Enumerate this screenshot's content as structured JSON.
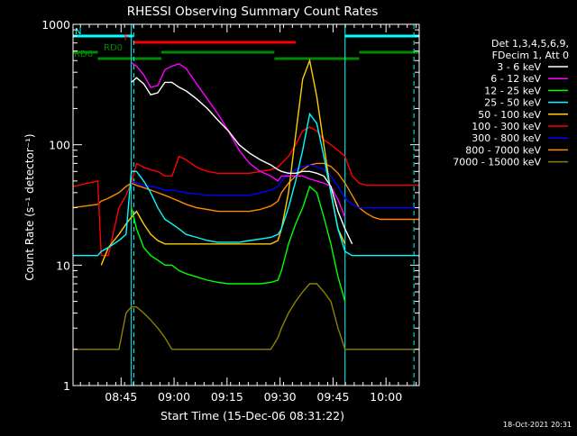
{
  "chart_data": {
    "type": "line",
    "title": "RHESSI Observing Summary Count Rates",
    "xlabel": "Start Time (15-Dec-06 08:31:22)",
    "ylabel": "Count Rate (s⁻¹ detector⁻¹)",
    "y_scale": "log",
    "ylim": [
      1,
      1000
    ],
    "xlim_minutes_after_0831": [
      0,
      98
    ],
    "y_ticks": [
      "1",
      "10",
      "100",
      "1000"
    ],
    "x_ticks": [
      {
        "label": "08:45",
        "minute": 13.6
      },
      {
        "label": "09:00",
        "minute": 28.6
      },
      {
        "label": "09:15",
        "minute": 43.6
      },
      {
        "label": "09:30",
        "minute": 58.6
      },
      {
        "label": "09:45",
        "minute": 73.6
      },
      {
        "label": "10:00",
        "minute": 88.6
      }
    ],
    "legend_header": [
      "Det 1,3,4,5,6,9,",
      "FDecim 1, Att 0"
    ],
    "timestamp": "18-Oct-2021 20:31",
    "flags": [
      {
        "label": "N",
        "color": "#00ffff",
        "segments": [
          [
            0,
            17
          ],
          [
            77,
            98
          ]
        ],
        "level": 1
      },
      {
        "label": "F",
        "color": "#ff0000",
        "segments": [
          [
            17,
            63
          ]
        ],
        "level": 2
      },
      {
        "label": "RD0",
        "color": "#008800",
        "segments": [
          [
            0,
            7
          ],
          [
            25,
            57
          ],
          [
            81,
            98
          ]
        ],
        "level": 3
      },
      {
        "label": "RD6",
        "color": "#008800",
        "segments": [
          [
            7,
            25
          ],
          [
            57,
            81
          ]
        ],
        "level": 4
      }
    ],
    "vertical_markers": [
      {
        "minute": 16.5,
        "style": "solid",
        "color": "#00ffff"
      },
      {
        "minute": 17.2,
        "style": "dashed",
        "color": "#00ffff"
      },
      {
        "minute": 77.0,
        "style": "solid",
        "color": "#00ffff"
      },
      {
        "minute": 96.5,
        "style": "dashed",
        "color": "#00ffff"
      }
    ],
    "x": [
      0,
      7,
      8,
      10,
      13,
      15,
      16.5,
      18,
      20,
      22,
      24,
      26,
      28,
      30,
      32,
      35,
      38,
      41,
      44,
      47,
      50,
      53,
      56,
      58,
      59,
      61,
      63,
      65,
      67,
      69,
      71,
      73,
      75,
      77,
      79,
      81,
      83,
      85,
      87,
      89,
      91,
      93,
      95,
      98
    ],
    "series": [
      {
        "name": "3 - 6 keV",
        "color": "#ffffff",
        "values": [
          null,
          null,
          null,
          null,
          null,
          null,
          330,
          360,
          320,
          260,
          270,
          330,
          330,
          300,
          280,
          240,
          200,
          160,
          130,
          100,
          85,
          75,
          68,
          62,
          60,
          58,
          58,
          60,
          60,
          58,
          55,
          45,
          28,
          20,
          15,
          null,
          null,
          null,
          null,
          null,
          null,
          null,
          null,
          null
        ]
      },
      {
        "name": "6 - 12 keV",
        "color": "#ff00ff",
        "values": [
          null,
          null,
          null,
          null,
          null,
          null,
          480,
          450,
          380,
          300,
          310,
          420,
          450,
          470,
          430,
          320,
          240,
          180,
          130,
          90,
          70,
          60,
          55,
          50,
          55,
          55,
          55,
          55,
          52,
          50,
          48,
          45,
          35,
          25,
          null,
          null,
          null,
          null,
          null,
          null,
          null,
          null,
          null,
          null
        ]
      },
      {
        "name": "12 - 25 keV",
        "color": "#00ff00",
        "values": [
          null,
          null,
          null,
          null,
          null,
          null,
          30,
          20,
          14,
          12,
          11,
          10,
          10,
          9,
          8.5,
          8,
          7.5,
          7.2,
          7,
          7,
          7,
          7,
          7.2,
          7.5,
          9,
          15,
          22,
          30,
          45,
          40,
          25,
          15,
          8,
          5,
          null,
          null,
          null,
          null,
          null,
          null,
          null,
          null,
          null,
          null
        ]
      },
      {
        "name": "25 - 50 keV",
        "color": "#00ffff",
        "values": [
          12,
          12,
          13,
          14,
          16,
          18,
          60,
          60,
          50,
          40,
          30,
          24,
          22,
          20,
          18,
          17,
          16,
          15.5,
          15.5,
          15.5,
          16,
          16.5,
          17,
          18,
          20,
          30,
          50,
          90,
          180,
          150,
          80,
          40,
          20,
          13,
          12,
          12,
          12,
          12,
          12,
          12,
          12,
          12,
          12,
          12
        ]
      },
      {
        "name": "50 - 100 keV",
        "color": "#ffcc00",
        "values": [
          null,
          null,
          10,
          14,
          18,
          22,
          25,
          28,
          22,
          18,
          16,
          15,
          15,
          15,
          15,
          15,
          15,
          15,
          15,
          15,
          15,
          15,
          15,
          16,
          20,
          40,
          120,
          350,
          500,
          250,
          100,
          40,
          20,
          15,
          null,
          null,
          null,
          null,
          null,
          null,
          null,
          null,
          null,
          null
        ]
      },
      {
        "name": "100 - 300 keV",
        "color": "#ff0000",
        "values": [
          45,
          50,
          12,
          12,
          30,
          38,
          48,
          70,
          65,
          62,
          60,
          55,
          55,
          80,
          75,
          65,
          60,
          58,
          58,
          58,
          58,
          60,
          62,
          65,
          70,
          80,
          100,
          130,
          140,
          130,
          110,
          100,
          90,
          80,
          55,
          48,
          46,
          46,
          46,
          46,
          46,
          46,
          46,
          46
        ]
      },
      {
        "name": "300 - 800 keV",
        "color": "#0000ff",
        "values": [
          null,
          null,
          null,
          null,
          null,
          null,
          50,
          48,
          46,
          45,
          44,
          42,
          42,
          41,
          40,
          39,
          38,
          38,
          38,
          38,
          38,
          40,
          42,
          45,
          50,
          58,
          62,
          66,
          68,
          66,
          62,
          55,
          45,
          36,
          32,
          30,
          30,
          30,
          30,
          30,
          30,
          30,
          30,
          30
        ]
      },
      {
        "name": "800 - 7000 keV",
        "color": "#ff8800",
        "values": [
          30,
          32,
          34,
          36,
          40,
          45,
          48,
          46,
          44,
          42,
          40,
          38,
          36,
          34,
          32,
          30,
          29,
          28,
          28,
          28,
          28,
          29,
          31,
          34,
          40,
          48,
          55,
          62,
          68,
          70,
          70,
          66,
          58,
          48,
          38,
          30,
          27,
          25,
          24,
          24,
          24,
          24,
          24,
          24
        ]
      },
      {
        "name": "7000 - 15000 keV",
        "color": "#8c8200",
        "values": [
          2,
          2,
          2,
          2,
          2,
          4,
          4.5,
          4.5,
          4,
          3.5,
          3,
          2.5,
          2,
          2,
          2,
          2,
          2,
          2,
          2,
          2,
          2,
          2,
          2,
          2.5,
          3,
          4,
          5,
          6,
          7,
          7,
          6,
          5,
          3,
          2,
          2,
          2,
          2,
          2,
          2,
          2,
          2,
          2,
          2,
          2
        ]
      }
    ]
  }
}
